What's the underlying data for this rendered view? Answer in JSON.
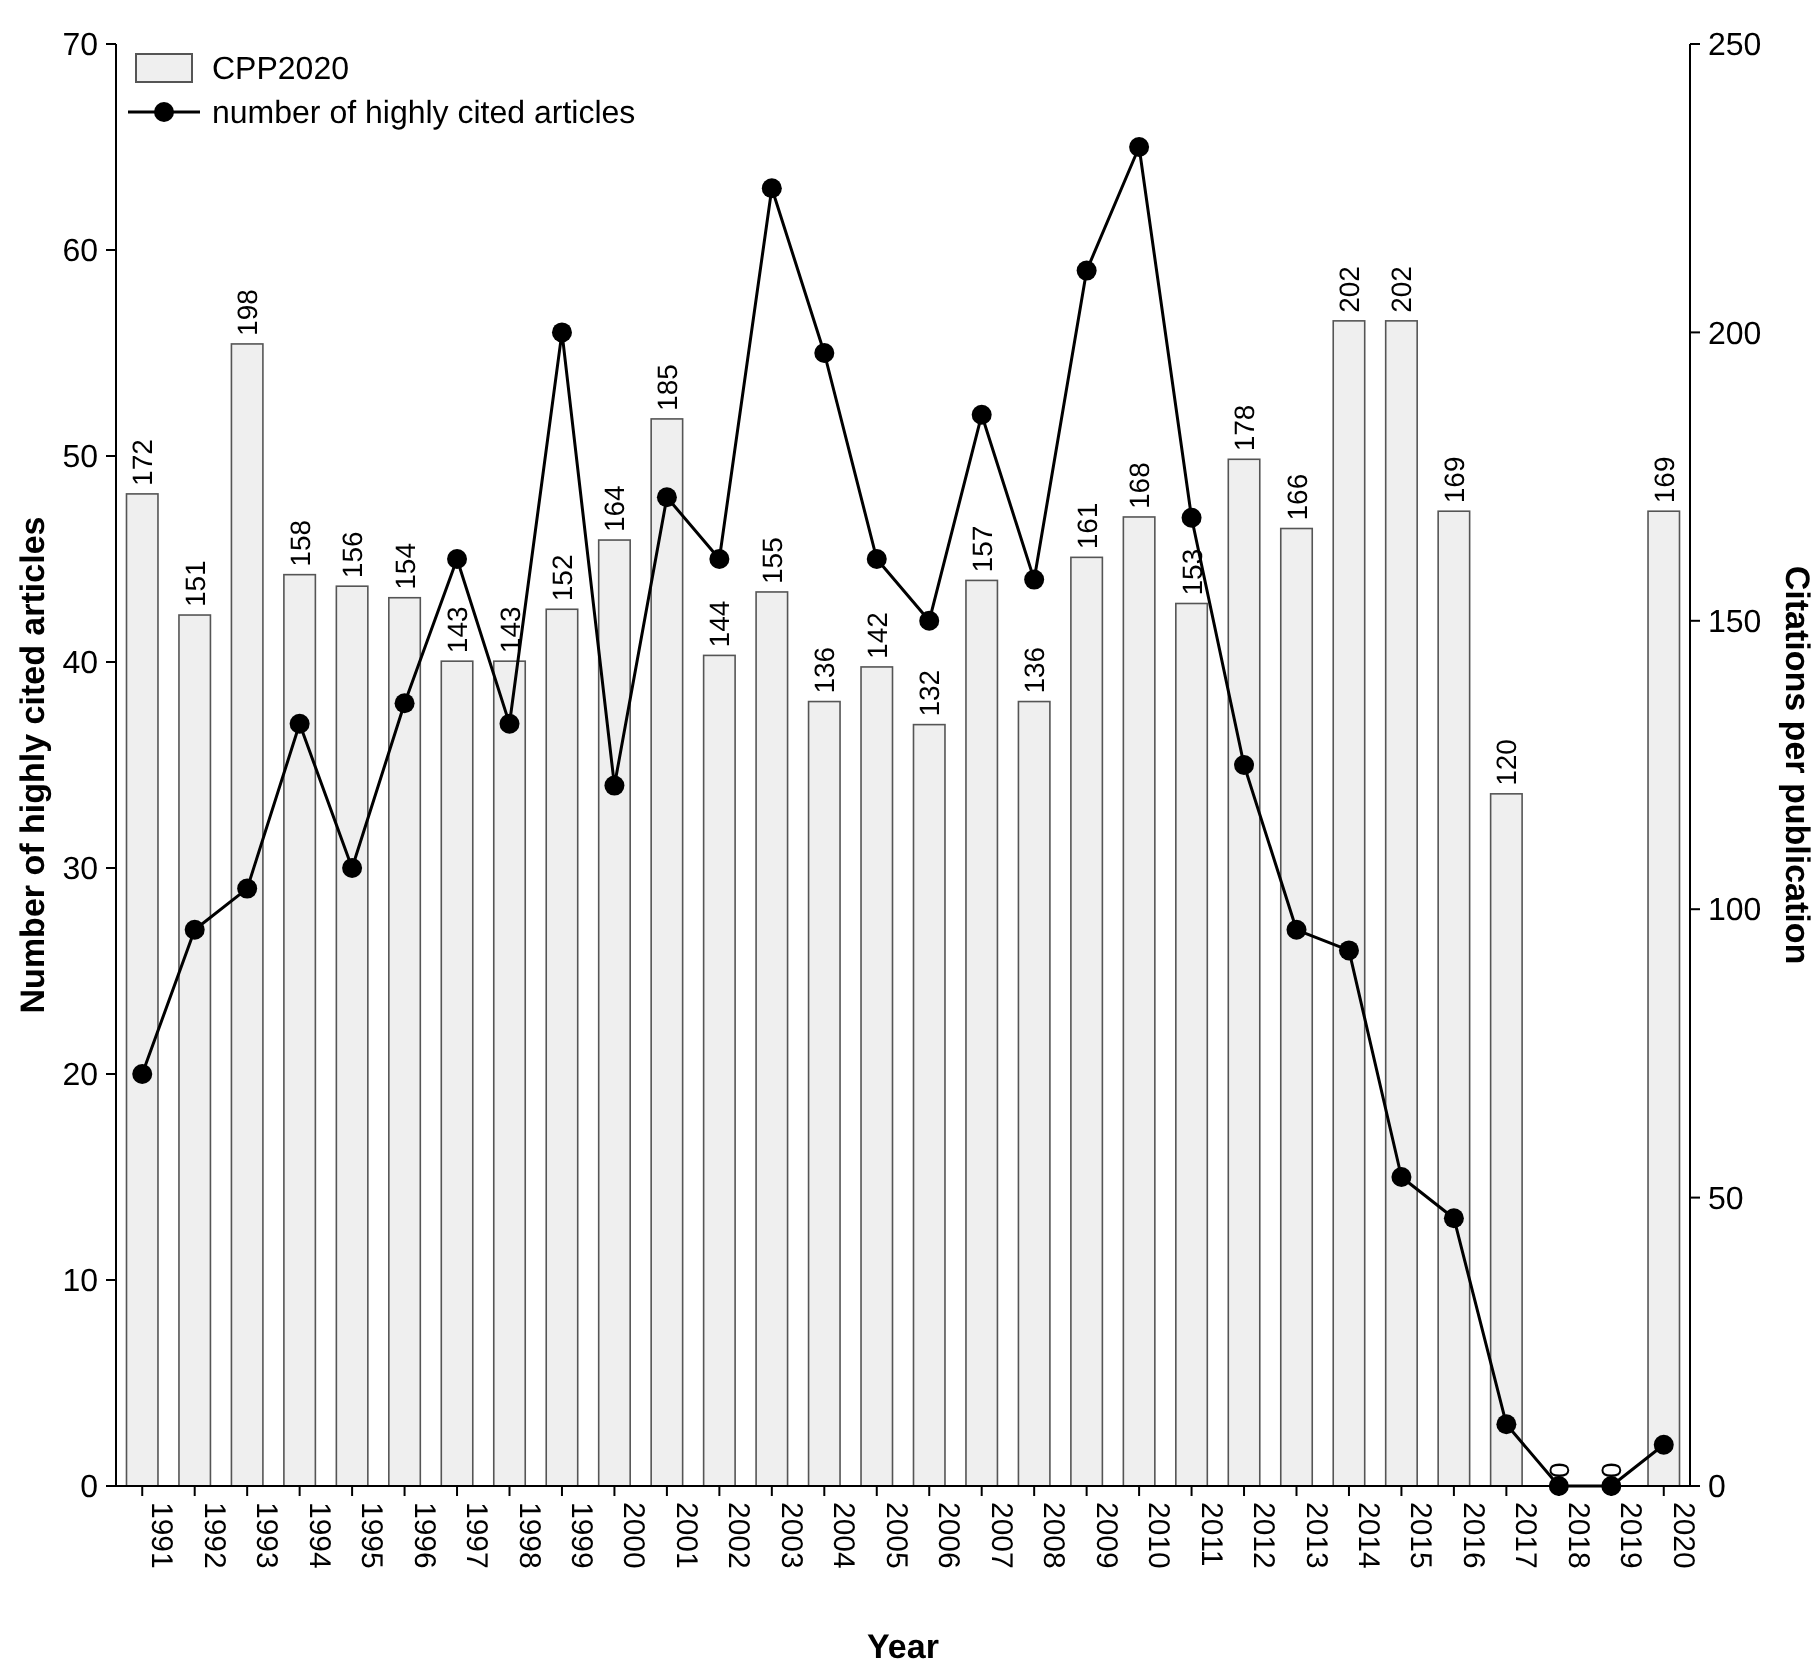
{
  "chart_data": {
    "type": "bar",
    "xlabel": "Year",
    "ylabel": "Number of highly cited articles",
    "y2label": "Citations per publication",
    "categories": [
      "1991",
      "1992",
      "1993",
      "1994",
      "1995",
      "1996",
      "1997",
      "1998",
      "1999",
      "2000",
      "2001",
      "2002",
      "2003",
      "2004",
      "2005",
      "2006",
      "2007",
      "2008",
      "2009",
      "2010",
      "2011",
      "2012",
      "2013",
      "2014",
      "2015",
      "2016",
      "2017",
      "2018",
      "2019",
      "2020"
    ],
    "series": [
      {
        "name": "CPP2020",
        "axis": "y2",
        "color": "#efefef",
        "values": [
          172,
          151,
          198,
          158,
          156,
          154,
          143,
          143,
          152,
          164,
          185,
          144,
          155,
          136,
          142,
          132,
          157,
          136,
          161,
          168,
          153,
          178,
          166,
          202,
          202,
          169,
          120,
          0,
          0,
          169
        ],
        "value_labels": [
          "172",
          "151",
          "198",
          "158",
          "156",
          "154",
          "143",
          "143",
          "152",
          "164",
          "185",
          "144",
          "155",
          "136",
          "142",
          "132",
          "157",
          "136",
          "161",
          "168",
          "153",
          "178",
          "166",
          "202",
          "202",
          "169",
          "120",
          "0",
          "0",
          "169"
        ]
      },
      {
        "name": "number of highly cited articles",
        "type": "line",
        "color": "#000000",
        "marker": "circle",
        "values": [
          20,
          27,
          29,
          37,
          30,
          38,
          45,
          37,
          56,
          34,
          48,
          45,
          63,
          55,
          45,
          42,
          52,
          44,
          59,
          65,
          47,
          35,
          27,
          26,
          15,
          13,
          3,
          0,
          0,
          2
        ]
      }
    ],
    "ylim": [
      0,
      70
    ],
    "yticks": [
      0,
      10,
      20,
      30,
      40,
      50,
      60,
      70
    ],
    "y2lim": [
      0,
      250
    ],
    "y2ticks": [
      0,
      50,
      100,
      150,
      200,
      250
    ],
    "legend": "top left",
    "grid": false
  }
}
